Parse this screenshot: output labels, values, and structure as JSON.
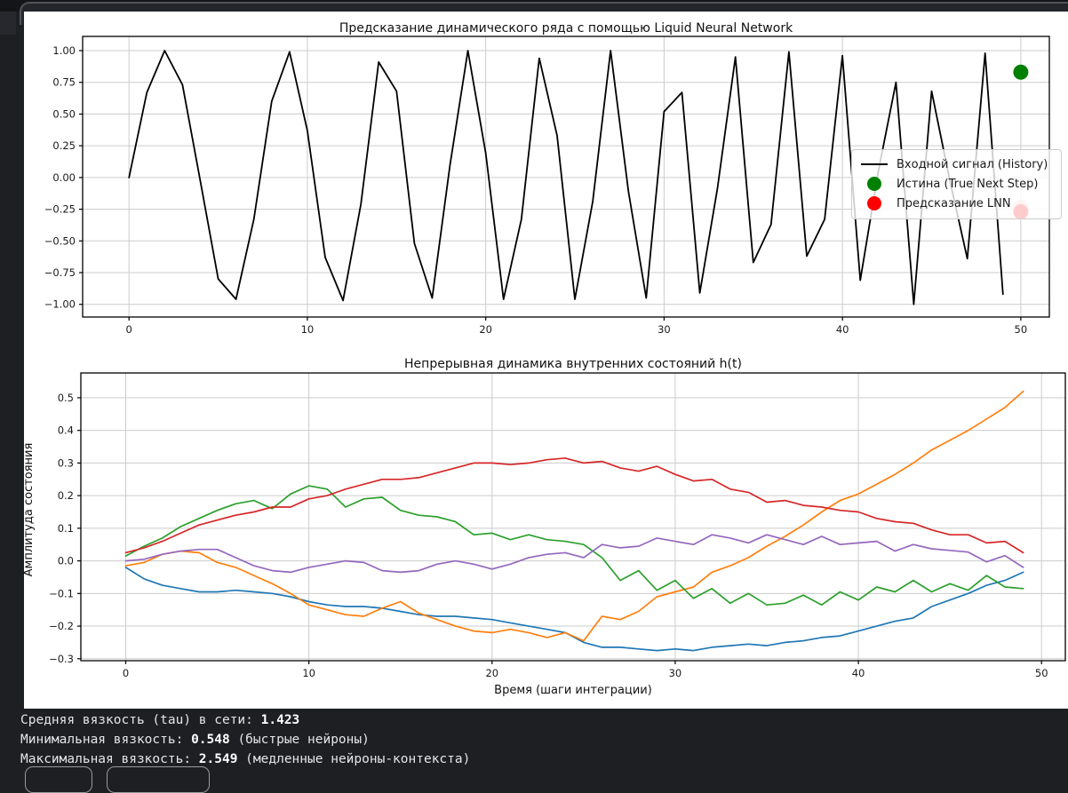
{
  "page": {
    "background": "#1d1f23",
    "figure_background": "#ffffff"
  },
  "chart_data": [
    {
      "type": "line",
      "title": "Предсказание динамического ряда с помощью Liquid Neural Network",
      "xlabel": "",
      "ylabel": "",
      "xlim": [
        -2.6,
        51.6
      ],
      "ylim": [
        -1.1,
        1.112
      ],
      "grid": true,
      "xticks": [
        {
          "v": 0,
          "t": "0"
        },
        {
          "v": 10,
          "t": "10"
        },
        {
          "v": 20,
          "t": "20"
        },
        {
          "v": 30,
          "t": "30"
        },
        {
          "v": 40,
          "t": "40"
        },
        {
          "v": 50,
          "t": "50"
        }
      ],
      "yticks": [
        {
          "v": 1.0,
          "t": "1.00"
        },
        {
          "v": 0.75,
          "t": "0.75"
        },
        {
          "v": 0.5,
          "t": "0.50"
        },
        {
          "v": 0.25,
          "t": "0.25"
        },
        {
          "v": 0.0,
          "t": "0.00"
        },
        {
          "v": -0.25,
          "t": "−0.25"
        },
        {
          "v": -0.5,
          "t": "−0.50"
        },
        {
          "v": -0.75,
          "t": "−0.75"
        },
        {
          "v": -1.0,
          "t": "−1.00"
        }
      ],
      "series": [
        {
          "name": "input-signal-history",
          "color": "#000000",
          "width": 1.8,
          "values": [
            0.0,
            0.67,
            1.0,
            0.73,
            -0.03,
            -0.8,
            -0.96,
            -0.33,
            0.6,
            0.99,
            0.37,
            -0.63,
            -0.97,
            -0.21,
            0.91,
            0.68,
            -0.52,
            -0.95,
            0.1,
            1.0,
            0.19,
            -0.96,
            -0.33,
            0.94,
            0.33,
            -0.96,
            -0.19,
            1.0,
            -0.11,
            -0.95,
            0.52,
            0.67,
            -0.91,
            -0.08,
            0.95,
            -0.67,
            -0.37,
            0.99,
            -0.62,
            -0.33,
            0.96,
            -0.81,
            0.04,
            0.75,
            -1.0,
            0.68,
            -0.01,
            -0.64,
            0.98,
            -0.92
          ]
        }
      ],
      "markers": [
        {
          "name": "true-next-step",
          "x": 50,
          "y": 0.83,
          "color": "#008000"
        },
        {
          "name": "lnn-prediction",
          "x": 50,
          "y": -0.27,
          "color": "#ff0000",
          "halo": {
            "y": -0.235,
            "color": "#f8c5c5"
          }
        }
      ],
      "legend": {
        "position": "center right",
        "items": [
          {
            "label": "Входной сигнал (History)",
            "marker": "line",
            "color": "#000000"
          },
          {
            "label": "Истина (True Next Step)",
            "marker": "circle",
            "color": "#008000"
          },
          {
            "label": "Предсказание LNN",
            "marker": "circle",
            "color": "#ff0000"
          }
        ]
      }
    },
    {
      "type": "line",
      "title": "Непрерывная динамика внутренних состояний h(t)",
      "xlabel": "Время (шаги интеграции)",
      "ylabel": "Амплитуда состояния",
      "xlim": [
        -2.45,
        51.3
      ],
      "ylim": [
        -0.306,
        0.576
      ],
      "grid": true,
      "xticks": [
        {
          "v": 0,
          "t": "0"
        },
        {
          "v": 10,
          "t": "10"
        },
        {
          "v": 20,
          "t": "20"
        },
        {
          "v": 30,
          "t": "30"
        },
        {
          "v": 40,
          "t": "40"
        },
        {
          "v": 50,
          "t": "50"
        }
      ],
      "yticks": [
        {
          "v": 0.5,
          "t": "0.5"
        },
        {
          "v": 0.4,
          "t": "0.4"
        },
        {
          "v": 0.3,
          "t": "0.3"
        },
        {
          "v": 0.2,
          "t": "0.2"
        },
        {
          "v": 0.1,
          "t": "0.1"
        },
        {
          "v": 0.0,
          "t": "0.0"
        },
        {
          "v": -0.1,
          "t": "−0.1"
        },
        {
          "v": -0.2,
          "t": "−0.2"
        },
        {
          "v": -0.3,
          "t": "−0.3"
        }
      ],
      "series": [
        {
          "name": "hidden-state-1",
          "color": "#1f77b4",
          "width": 1.7,
          "values": [
            -0.02,
            -0.055,
            -0.075,
            -0.085,
            -0.095,
            -0.095,
            -0.09,
            -0.095,
            -0.1,
            -0.11,
            -0.125,
            -0.135,
            -0.14,
            -0.14,
            -0.145,
            -0.155,
            -0.165,
            -0.17,
            -0.17,
            -0.175,
            -0.18,
            -0.19,
            -0.2,
            -0.21,
            -0.22,
            -0.25,
            -0.265,
            -0.265,
            -0.27,
            -0.275,
            -0.27,
            -0.275,
            -0.265,
            -0.26,
            -0.255,
            -0.26,
            -0.25,
            -0.245,
            -0.235,
            -0.23,
            -0.215,
            -0.2,
            -0.185,
            -0.175,
            -0.14,
            -0.12,
            -0.1,
            -0.075,
            -0.06,
            -0.035
          ]
        },
        {
          "name": "hidden-state-2",
          "color": "#ff7f0e",
          "width": 1.7,
          "values": [
            -0.015,
            -0.005,
            0.02,
            0.03,
            0.025,
            -0.005,
            -0.02,
            -0.045,
            -0.07,
            -0.1,
            -0.135,
            -0.15,
            -0.165,
            -0.17,
            -0.145,
            -0.125,
            -0.16,
            -0.18,
            -0.2,
            -0.215,
            -0.22,
            -0.21,
            -0.22,
            -0.235,
            -0.22,
            -0.245,
            -0.17,
            -0.18,
            -0.155,
            -0.11,
            -0.095,
            -0.08,
            -0.035,
            -0.015,
            0.01,
            0.045,
            0.075,
            0.11,
            0.15,
            0.185,
            0.205,
            0.235,
            0.265,
            0.3,
            0.34,
            0.37,
            0.4,
            0.435,
            0.47,
            0.52
          ]
        },
        {
          "name": "hidden-state-3",
          "color": "#2ca02c",
          "width": 1.7,
          "values": [
            0.015,
            0.045,
            0.07,
            0.105,
            0.13,
            0.155,
            0.175,
            0.185,
            0.16,
            0.205,
            0.23,
            0.22,
            0.165,
            0.19,
            0.195,
            0.155,
            0.14,
            0.135,
            0.12,
            0.08,
            0.085,
            0.065,
            0.08,
            0.065,
            0.06,
            0.05,
            0.01,
            -0.06,
            -0.03,
            -0.09,
            -0.06,
            -0.115,
            -0.085,
            -0.13,
            -0.1,
            -0.135,
            -0.13,
            -0.105,
            -0.135,
            -0.095,
            -0.12,
            -0.08,
            -0.095,
            -0.06,
            -0.095,
            -0.07,
            -0.09,
            -0.045,
            -0.08,
            -0.085
          ]
        },
        {
          "name": "hidden-state-4",
          "color": "#d62728",
          "width": 1.7,
          "values": [
            0.025,
            0.04,
            0.06,
            0.085,
            0.11,
            0.125,
            0.14,
            0.15,
            0.165,
            0.165,
            0.19,
            0.2,
            0.22,
            0.235,
            0.25,
            0.25,
            0.255,
            0.27,
            0.285,
            0.3,
            0.3,
            0.295,
            0.3,
            0.31,
            0.315,
            0.3,
            0.305,
            0.285,
            0.275,
            0.29,
            0.265,
            0.245,
            0.25,
            0.22,
            0.21,
            0.18,
            0.185,
            0.17,
            0.165,
            0.155,
            0.15,
            0.13,
            0.12,
            0.115,
            0.095,
            0.08,
            0.08,
            0.055,
            0.06,
            0.025
          ]
        },
        {
          "name": "hidden-state-5",
          "color": "#9467bd",
          "width": 1.7,
          "values": [
            0.0,
            0.005,
            0.02,
            0.03,
            0.035,
            0.035,
            0.01,
            -0.015,
            -0.03,
            -0.035,
            -0.02,
            -0.01,
            0.0,
            -0.005,
            -0.03,
            -0.035,
            -0.03,
            -0.01,
            0.0,
            -0.01,
            -0.025,
            -0.01,
            0.01,
            0.02,
            0.025,
            0.01,
            0.05,
            0.04,
            0.045,
            0.07,
            0.06,
            0.05,
            0.08,
            0.07,
            0.055,
            0.08,
            0.065,
            0.05,
            0.075,
            0.05,
            0.055,
            0.06,
            0.03,
            0.05,
            0.037,
            0.032,
            0.027,
            -0.003,
            0.016,
            -0.02
          ]
        }
      ],
      "markers": []
    }
  ],
  "terminal": {
    "lines": [
      {
        "label": "Средняя вязкость (tau) в сети: ",
        "value": "1.423",
        "note": ""
      },
      {
        "label": "Минимальная вязкость: ",
        "value": "0.548",
        "note": " (быстрые нейроны)"
      },
      {
        "label": "Максимальная вязкость: ",
        "value": "2.549",
        "note": " (медленные нейроны-контекста)"
      }
    ]
  },
  "buttons": [
    {
      "label": ""
    },
    {
      "label": ""
    }
  ]
}
